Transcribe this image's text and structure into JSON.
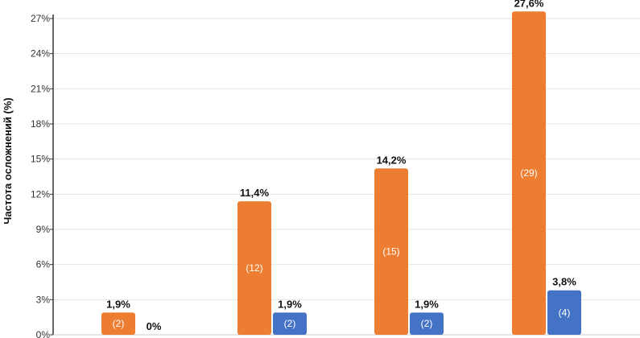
{
  "chart_data": {
    "type": "bar",
    "ylabel": "Частота осложнений (%)",
    "ylim": [
      0,
      27
    ],
    "yticks": [
      "0%",
      "3%",
      "6%",
      "9%",
      "12%",
      "15%",
      "18%",
      "21%",
      "24%",
      "27%"
    ],
    "grid": true,
    "categories": [
      "",
      "",
      "",
      ""
    ],
    "series": [
      {
        "color": "#ED7D31",
        "values": [
          1.9,
          11.4,
          14.2,
          27.6
        ],
        "value_labels": [
          "1,9%",
          "11,4%",
          "14,2%",
          "27,6%"
        ],
        "count_labels": [
          "(2)",
          "(12)",
          "(15)",
          "(29)"
        ]
      },
      {
        "color": "#4472C4",
        "values": [
          0,
          1.9,
          1.9,
          3.8
        ],
        "value_labels": [
          "0%",
          "1,9%",
          "1,9%",
          "3,8%"
        ],
        "count_labels": [
          "",
          "(2)",
          "(2)",
          "(4)"
        ]
      }
    ]
  }
}
